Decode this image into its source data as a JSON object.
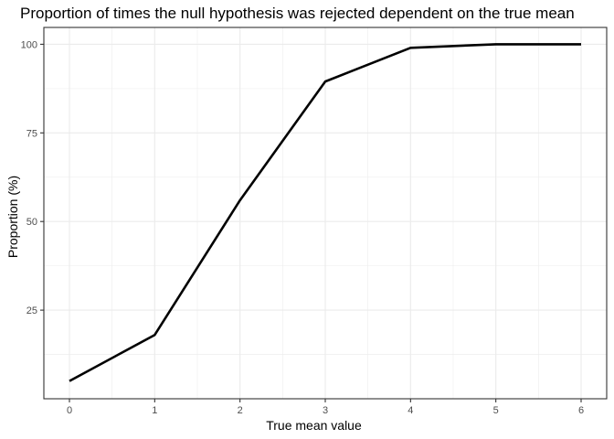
{
  "chart_data": {
    "type": "line",
    "title": "Proportion of times the null hypothesis was rejected dependent on the true mean",
    "xlabel": "True mean value",
    "ylabel": "Proportion (%)",
    "x": [
      0,
      1,
      2,
      3,
      4,
      5,
      6
    ],
    "y": [
      5,
      18,
      56,
      89.5,
      99,
      100,
      100
    ],
    "xlim": [
      -0.3,
      6.3
    ],
    "ylim": [
      0,
      104.75
    ],
    "xticks": [
      0,
      1,
      2,
      3,
      4,
      5,
      6
    ],
    "xtick_labels": [
      "0",
      "1",
      "2",
      "3",
      "4",
      "5",
      "6"
    ],
    "yticks": [
      25,
      50,
      75,
      100
    ],
    "ytick_labels": [
      "25",
      "50",
      "75",
      "100"
    ],
    "grid": true,
    "line_color": "#000000",
    "grid_color": "#ebebeb",
    "border_color": "#333333"
  }
}
